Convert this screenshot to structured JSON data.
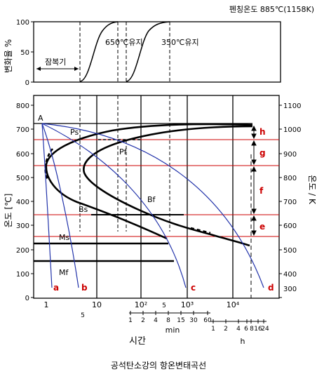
{
  "top_panel": {
    "austenitizing_label": "펜칭온도 885℃(1158K)",
    "y_axis_label": "변화율 %",
    "y_ticks": [
      "100",
      "50",
      "0"
    ],
    "curve_label_650": "650℃유지",
    "curve_label_350": "350℃유지",
    "incubation_label": "잠복기"
  },
  "main_panel": {
    "y_axis_left_label": "온도 [℃]",
    "y_axis_right_label": "온도 / K",
    "y_ticks_left": [
      "800",
      "700",
      "600",
      "500",
      "400",
      "300",
      "200",
      "100",
      "0"
    ],
    "y_ticks_right": [
      "1100",
      "1000",
      "900",
      "800",
      "700",
      "600",
      "500",
      "400",
      "300"
    ],
    "x_ticks": [
      "1",
      "10",
      "10²",
      "10³",
      "10⁴"
    ],
    "x_minor_under": [
      "5",
      "5"
    ],
    "point_labels": {
      "A": "A",
      "Ps": "Ps",
      "Pf": "Pf",
      "Bs": "Bs",
      "Bf": "Bf",
      "Ms": "Ms",
      "Mf": "Mf"
    },
    "cooling_curve_labels": [
      "a",
      "b",
      "c",
      "d"
    ],
    "zone_labels": [
      "h",
      "g",
      "f",
      "e"
    ],
    "min_scale": {
      "ticks": [
        "1",
        "2",
        "4",
        "8",
        "15",
        "30",
        "60"
      ],
      "unit": "min"
    },
    "hour_scale": {
      "ticks": [
        "1",
        "2",
        "4",
        "6",
        "8",
        "16",
        "24"
      ],
      "unit": "h"
    },
    "x_axis_label": "시간"
  },
  "colors": {
    "ink": "#000000",
    "red_line": "#cc0000",
    "blue_curve": "#2233aa",
    "red_label": "#cc0000"
  },
  "caption": "공석탄소강의 항온변태곡선"
}
